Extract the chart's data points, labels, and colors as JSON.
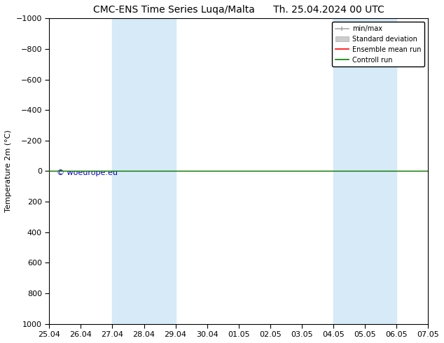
{
  "title": "CMC-ENS Time Series Luqa/Malta      Th. 25.04.2024 00 UTC",
  "ylabel": "Temperature 2m (°C)",
  "ylim": [
    -1000,
    1000
  ],
  "yticks": [
    -1000,
    -800,
    -600,
    -400,
    -200,
    0,
    200,
    400,
    600,
    800,
    1000
  ],
  "xtick_labels": [
    "25.04",
    "26.04",
    "27.04",
    "28.04",
    "29.04",
    "30.04",
    "01.05",
    "02.05",
    "03.05",
    "04.05",
    "05.05",
    "06.05",
    "07.05"
  ],
  "shaded_regions": [
    {
      "xstart": 2,
      "xend": 4,
      "color": "#d6eaf8"
    },
    {
      "xstart": 9,
      "xend": 11,
      "color": "#d6eaf8"
    }
  ],
  "hline_y": 0,
  "hline_color_green": "#008000",
  "hline_color_red": "#ff0000",
  "watermark": "© woeurope.eu",
  "watermark_color": "#0000cc",
  "legend_entries": [
    "min/max",
    "Standard deviation",
    "Ensemble mean run",
    "Controll run"
  ],
  "legend_line_colors": [
    "#aaaaaa",
    "#cccccc",
    "#ff0000",
    "#008000"
  ],
  "background_color": "#ffffff",
  "title_fontsize": 10,
  "axis_fontsize": 8,
  "tick_fontsize": 8
}
